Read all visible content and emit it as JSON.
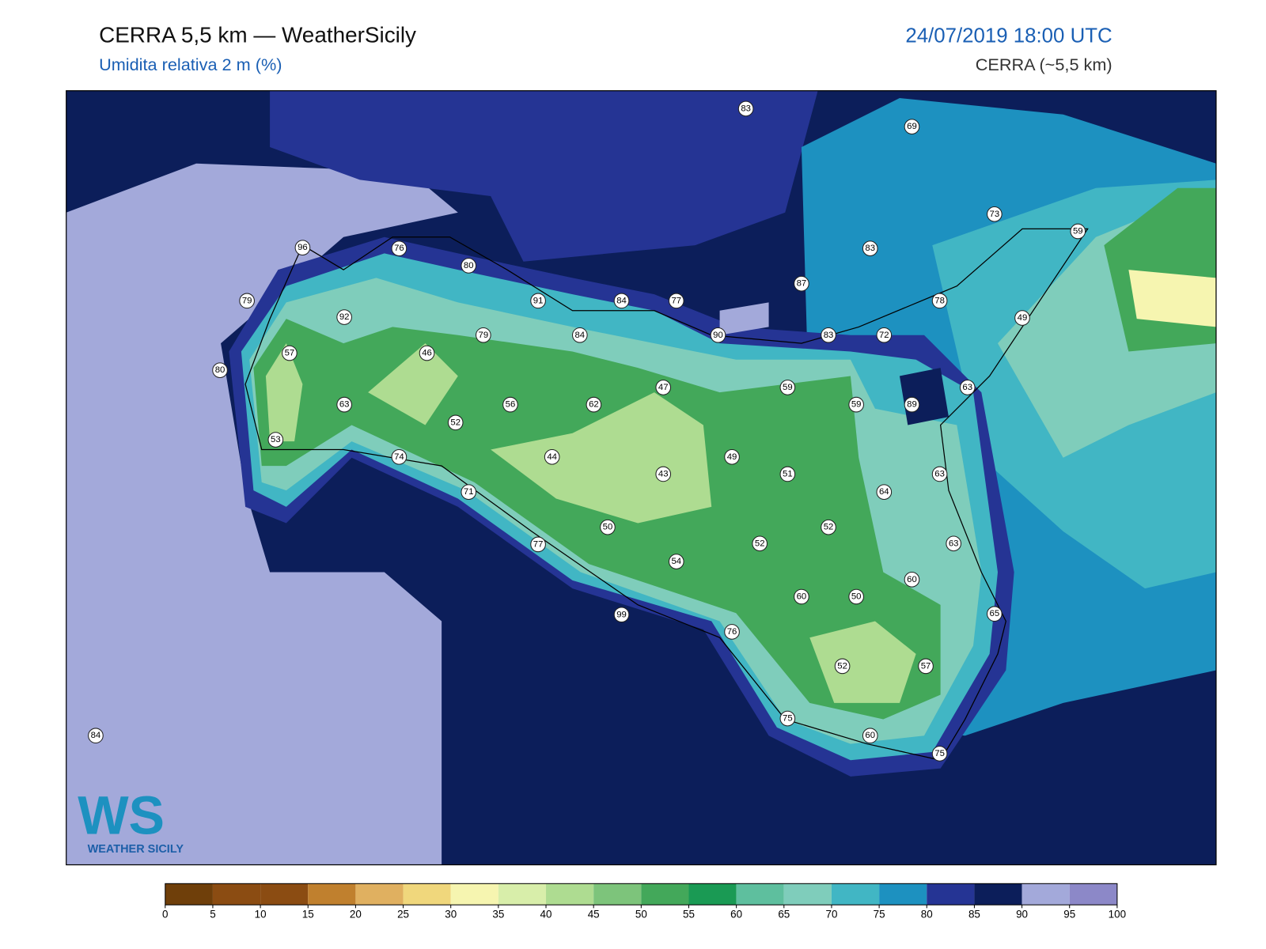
{
  "header": {
    "title": "CERRA 5,5 km — WeatherSicily",
    "subtitle": "Umidita relativa 2 m (%)",
    "datetime": "24/07/2019 18:00 UTC",
    "model": "CERRA (~5,5 km)"
  },
  "stations": [
    83,
    69,
    73,
    59,
    96,
    76,
    80,
    83,
    87,
    79,
    92,
    91,
    84,
    77,
    78,
    49,
    90,
    84,
    79,
    83,
    72,
    57,
    46,
    80,
    63,
    47,
    59,
    89,
    59,
    63,
    56,
    62,
    52,
    53,
    74,
    44,
    43,
    49,
    51,
    63,
    71,
    64,
    50,
    52,
    52,
    63,
    77,
    54,
    60,
    60,
    50,
    65,
    99,
    76,
    52,
    57,
    75,
    60,
    75,
    84
  ],
  "colorbar": {
    "ticks": [
      0,
      5,
      10,
      15,
      20,
      25,
      30,
      35,
      40,
      45,
      50,
      55,
      60,
      65,
      70,
      75,
      80,
      85,
      90,
      95,
      100
    ],
    "colors": [
      "#6f3f0a",
      "#8b4c12",
      "#8b4c12",
      "#c0802e",
      "#e0b060",
      "#f0d77c",
      "#f6f5b0",
      "#d8eeaa",
      "#aedc91",
      "#7dc47b",
      "#43a85a",
      "#1a9a54",
      "#5ebf9e",
      "#7fcdbb",
      "#41b6c4",
      "#1d91c0",
      "#253494",
      "#0c1e5a",
      "#a3a9da",
      "#8c88c8"
    ]
  },
  "logo": {
    "mark": "WS",
    "text": "WEATHER SICILY"
  }
}
